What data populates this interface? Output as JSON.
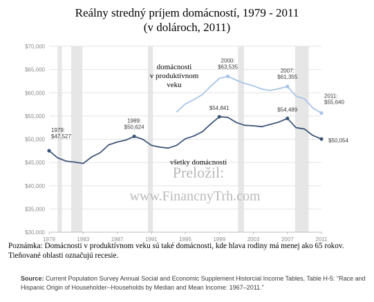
{
  "title_line1": "Reálny stredný príjem domácností, 1979 - 2011",
  "title_line2": "(v dolároch, 2011)",
  "chart_data": {
    "type": "line",
    "x_ticks": [
      1979,
      1983,
      1987,
      1991,
      1995,
      1999,
      2003,
      2007,
      2011
    ],
    "y_ticks": [
      30000,
      35000,
      40000,
      45000,
      50000,
      55000,
      60000,
      65000,
      70000
    ],
    "y_tick_labels": [
      "$30,000",
      "$35,000",
      "$40,000",
      "$45,000",
      "$50,000",
      "$55,000",
      "$60,000",
      "$65,000",
      "$70,000"
    ],
    "xlim": [
      1979,
      2011
    ],
    "ylim": [
      30000,
      70000
    ],
    "recessions": [
      [
        1980,
        1980.5
      ],
      [
        1981.6,
        1982.9
      ],
      [
        1990.6,
        1991.2
      ],
      [
        2001.2,
        2001.9
      ],
      [
        2007.9,
        2009.5
      ]
    ],
    "series": [
      {
        "name": "všetky domácnosti",
        "color": "#3e5578",
        "x": [
          1979,
          1980,
          1981,
          1982,
          1983,
          1984,
          1985,
          1986,
          1987,
          1988,
          1989,
          1990,
          1991,
          1992,
          1993,
          1994,
          1995,
          1996,
          1997,
          1998,
          1999,
          2000,
          2001,
          2002,
          2003,
          2004,
          2005,
          2006,
          2007,
          2008,
          2009,
          2010,
          2011
        ],
        "values": [
          47527,
          46000,
          45300,
          45100,
          44800,
          46200,
          47100,
          48800,
          49400,
          49800,
          50624,
          50000,
          48700,
          48300,
          48100,
          48700,
          50100,
          50700,
          51600,
          53300,
          54841,
          54700,
          53600,
          53000,
          52900,
          52700,
          53200,
          53700,
          54489,
          52500,
          52200,
          50800,
          50054
        ]
      },
      {
        "name": "domácnosti v produktívnom veku",
        "color": "#a9c4e6",
        "x": [
          1994,
          1995,
          1996,
          1997,
          1998,
          1999,
          2000,
          2001,
          2002,
          2003,
          2004,
          2005,
          2006,
          2007,
          2008,
          2009,
          2010,
          2011
        ],
        "values": [
          55900,
          57600,
          58500,
          59600,
          61400,
          63100,
          63535,
          62700,
          62000,
          61500,
          60800,
          60500,
          60900,
          61355,
          59300,
          58700,
          56700,
          55640
        ]
      }
    ],
    "annotations": [
      {
        "year_label": "1979:",
        "value_label": "$47,527"
      },
      {
        "year_label": "1989:",
        "value_label": "$50,624"
      },
      {
        "year_label": "",
        "value_label": "$54,841"
      },
      {
        "year_label": "",
        "value_label": "$54,489"
      },
      {
        "year_label": "",
        "value_label": "$50,054"
      },
      {
        "year_label": "2000:",
        "value_label": "$63,535"
      },
      {
        "year_label": "2007:",
        "value_label": "$61,355"
      },
      {
        "year_label": "2011:",
        "value_label": "$55,640"
      }
    ],
    "series_label_working_age": [
      "domácnosti",
      "v produktívnom",
      "veku"
    ],
    "series_label_all": "všetky domácnosti"
  },
  "watermark_line1": "Preložil:",
  "watermark_line2": "www.FinancnyTrh.com",
  "note_text": "Poznámka: Domácnosti v produktívnom veku sú také domácnosti, kde hlava rodiny má menej ako 65 rokov. Tieňované oblasti označujú recesie.",
  "source_label": "Source:",
  "source_text": " Current Population Survey Annual Social and Economic Supplement Historcial Income Tables, Table H-5: \"Race and Hispanic Origin of Householder--Households by Median and Mean Income: 1967–2011.\""
}
